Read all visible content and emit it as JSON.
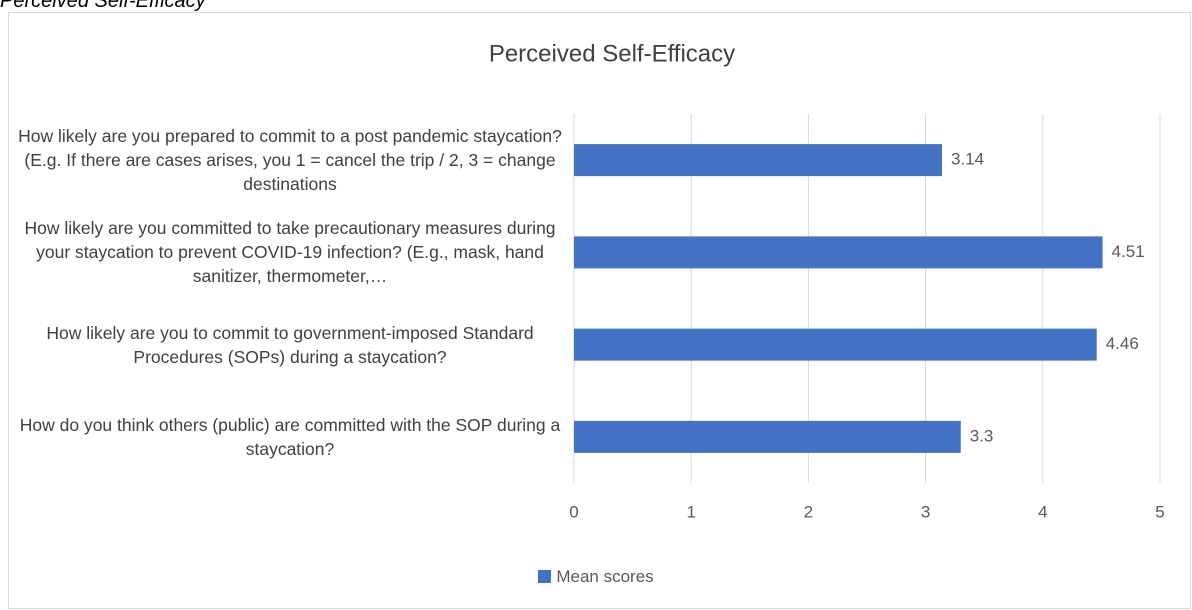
{
  "caption": "Perceived Self-Efficacy",
  "chart_data": {
    "type": "barh",
    "title": "Perceived Self-Efficacy",
    "categories": [
      "How likely are you prepared to commit to a post pandemic staycation? (E.g. If there are cases arises, you 1 = cancel the trip / 2, 3 = change destinations",
      "How likely are you committed to take precautionary measures during your staycation to prevent COVID-19 infection? (E.g., mask, hand sanitizer, thermometer,…",
      "How likely are you to commit to government-imposed Standard Procedures (SOPs) during a staycation?",
      "How do you think others (public) are committed with the SOP during a staycation?"
    ],
    "series": [
      {
        "name": "Mean scores",
        "color": "#4472c4",
        "values": [
          3.14,
          4.51,
          4.46,
          3.3
        ]
      }
    ],
    "xlim": [
      0,
      5
    ],
    "xticks": [
      0,
      1,
      2,
      3,
      4,
      5
    ],
    "grid": true,
    "legend": "bottom"
  }
}
